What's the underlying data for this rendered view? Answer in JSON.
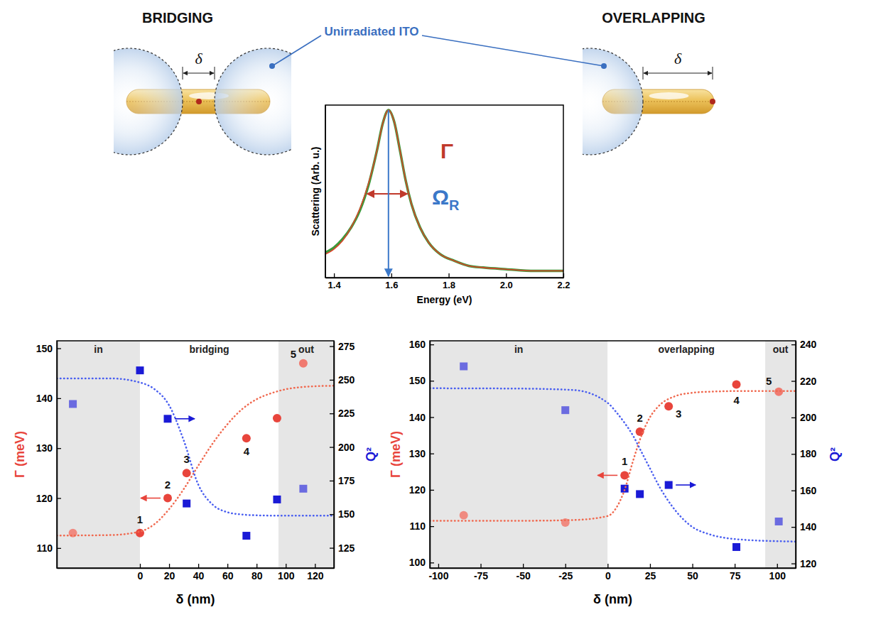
{
  "diagram": {
    "panels": [
      {
        "title": "BRIDGING",
        "gap_label": "δ"
      },
      {
        "title": "OVERLAPPING",
        "gap_label": "δ"
      }
    ],
    "callout": "Unirradiated ITO"
  },
  "chart_data": [
    {
      "type": "line",
      "xlabel": "Energy (eV)",
      "ylabel": "Scattering (Arb. u.)",
      "x": [
        1.37,
        1.4,
        1.43,
        1.46,
        1.49,
        1.52,
        1.55,
        1.57,
        1.59,
        1.61,
        1.63,
        1.65,
        1.67,
        1.7,
        1.73,
        1.77,
        1.82,
        1.87,
        1.92,
        2.0,
        2.1,
        2.2
      ],
      "series": [
        {
          "color": "#3a9a3a",
          "values": [
            0.15,
            0.18,
            0.23,
            0.3,
            0.4,
            0.55,
            0.76,
            0.92,
            1.0,
            0.93,
            0.76,
            0.58,
            0.44,
            0.3,
            0.21,
            0.14,
            0.1,
            0.07,
            0.06,
            0.05,
            0.04,
            0.04
          ]
        },
        {
          "color": "#d9452b",
          "values": [
            0.14,
            0.17,
            0.22,
            0.3,
            0.41,
            0.56,
            0.76,
            0.92,
            1.0,
            0.93,
            0.76,
            0.58,
            0.44,
            0.3,
            0.21,
            0.14,
            0.1,
            0.07,
            0.06,
            0.05,
            0.04,
            0.04
          ]
        }
      ],
      "xlim": [
        1.37,
        2.2
      ],
      "xticks": [
        1.4,
        1.6,
        1.8,
        {
          "value": 2,
          "label": "2.0"
        },
        2.2
      ],
      "ylim": [
        0,
        1.03
      ],
      "tick_labels": "x",
      "annotations": [
        {
          "text": "Γ"
        },
        {
          "text": "Ω",
          "subscript": "R"
        }
      ]
    },
    {
      "type": "scatter",
      "xlabel": "δ (nm)",
      "ylabel": "Γ (meV)",
      "y2label": "Q²",
      "xlim": [
        -57,
        133
      ],
      "xticks": [
        0,
        20,
        40,
        60,
        80,
        100,
        120
      ],
      "ylim": [
        106,
        151.5
      ],
      "yticks": [
        110,
        120,
        130,
        140,
        150
      ],
      "y2lim": [
        110,
        279
      ],
      "y2ticks": [
        125,
        150,
        175,
        200,
        225,
        250,
        275
      ],
      "regions": [
        {
          "label": "in",
          "from": -57,
          "to": 0,
          "color": "#e6e6e6"
        },
        {
          "label": "bridging",
          "from": 0,
          "to": 95,
          "color": "#ffffff"
        },
        {
          "label": "out",
          "from": 95,
          "to": 133,
          "color": "#e6e6e6"
        }
      ],
      "series": [
        {
          "type": "scatter",
          "marker": "circle",
          "color": "#e8453c",
          "colors": [
            "#f08a80",
            "#e8453c",
            "#e8453c",
            "#e8453c",
            "#e8453c",
            "#e8453c",
            "#f07a70"
          ],
          "x": [
            -46,
            0,
            19,
            32,
            73,
            94,
            112
          ],
          "values": [
            113,
            113,
            120,
            125,
            132,
            136,
            147
          ],
          "labels": [
            null,
            "1",
            "2",
            "3",
            "4",
            null,
            "5"
          ]
        },
        {
          "type": "scatter",
          "marker": "square",
          "axis": "y2",
          "color": "#1a1ad6",
          "colors": [
            "#6b6be0",
            "#1a1ad6",
            "#1a1ad6",
            "#1a1ad6",
            "#1a1ad6",
            "#1a1ad6",
            "#6b6be0"
          ],
          "x": [
            -46,
            0,
            19,
            32,
            73,
            94,
            112
          ],
          "values": [
            232,
            257,
            221,
            158,
            134,
            161,
            169
          ]
        },
        {
          "type": "line",
          "line_style": "dotted",
          "color": "#f0694f",
          "x": [
            -57,
            -20,
            0,
            10,
            20,
            30,
            40,
            50,
            60,
            70,
            80,
            90,
            100,
            110,
            120,
            133
          ],
          "values": [
            112.5,
            112.6,
            113.3,
            114.8,
            117.8,
            121.8,
            126.5,
            131,
            134.8,
            137.8,
            139.8,
            141,
            141.8,
            142.2,
            142.4,
            142.5
          ]
        },
        {
          "type": "line",
          "line_style": "dotted",
          "axis": "y2",
          "color": "#4a5ff0",
          "x": [
            -57,
            -20,
            0,
            10,
            20,
            30,
            40,
            50,
            60,
            70,
            80,
            90,
            100,
            110,
            120,
            133
          ],
          "values": [
            251,
            251,
            248,
            243,
            231,
            205,
            172,
            157,
            151.5,
            149.8,
            149.2,
            149,
            149,
            149,
            149,
            149
          ]
        }
      ]
    },
    {
      "type": "scatter",
      "xlabel": "δ (nm)",
      "ylabel": "Γ (meV)",
      "y2label": "Q²",
      "xlim": [
        -105,
        111
      ],
      "xticks": [
        -100,
        -75,
        -50,
        -25,
        0,
        25,
        50,
        75,
        100
      ],
      "ylim": [
        98.5,
        161
      ],
      "yticks": [
        100,
        110,
        120,
        130,
        140,
        150,
        160
      ],
      "y2lim": [
        117.5,
        242
      ],
      "y2ticks": [
        120,
        140,
        160,
        180,
        200,
        220,
        240
      ],
      "regions": [
        {
          "label": "in",
          "from": -105,
          "to": 0,
          "color": "#e6e6e6"
        },
        {
          "label": "overlapping",
          "from": 0,
          "to": 93,
          "color": "#ffffff"
        },
        {
          "label": "out",
          "from": 93,
          "to": 111,
          "color": "#e6e6e6"
        }
      ],
      "series": [
        {
          "type": "scatter",
          "marker": "circle",
          "color": "#e8453c",
          "colors": [
            "#f08a80",
            "#f08a80",
            "#e8453c",
            "#e8453c",
            "#e8453c",
            "#e8453c",
            "#f07a70"
          ],
          "x": [
            -85,
            -25,
            10,
            19,
            36,
            76,
            101
          ],
          "values": [
            113,
            111,
            124,
            136,
            143,
            149,
            147
          ],
          "labels": [
            null,
            null,
            "1",
            "2",
            "3",
            "4",
            "5"
          ]
        },
        {
          "type": "scatter",
          "marker": "square",
          "axis": "y2",
          "color": "#1a1ad6",
          "colors": [
            "#6b6be0",
            "#6b6be0",
            "#1a1ad6",
            "#1a1ad6",
            "#1a1ad6",
            "#1a1ad6",
            "#6b6be0"
          ],
          "x": [
            -85,
            -25,
            10,
            19,
            36,
            76,
            101
          ],
          "values": [
            228,
            204,
            161,
            158,
            163,
            129,
            143
          ]
        },
        {
          "type": "line",
          "line_style": "dotted",
          "color": "#f0694f",
          "x": [
            -105,
            -50,
            -20,
            0,
            5,
            10,
            15,
            20,
            25,
            30,
            40,
            50,
            60,
            80,
            111
          ],
          "values": [
            111.5,
            111.5,
            111.7,
            112.8,
            115,
            120,
            128,
            135,
            140,
            143,
            145.8,
            146.7,
            147,
            147.2,
            147.2
          ]
        },
        {
          "type": "line",
          "line_style": "dotted",
          "axis": "y2",
          "color": "#4a5ff0",
          "x": [
            -105,
            -50,
            -20,
            0,
            5,
            10,
            15,
            20,
            25,
            30,
            40,
            50,
            60,
            80,
            111
          ],
          "values": [
            216,
            215.8,
            215,
            208,
            203,
            197,
            190,
            181,
            172,
            163,
            149,
            140,
            136,
            133,
            132
          ]
        }
      ]
    }
  ]
}
